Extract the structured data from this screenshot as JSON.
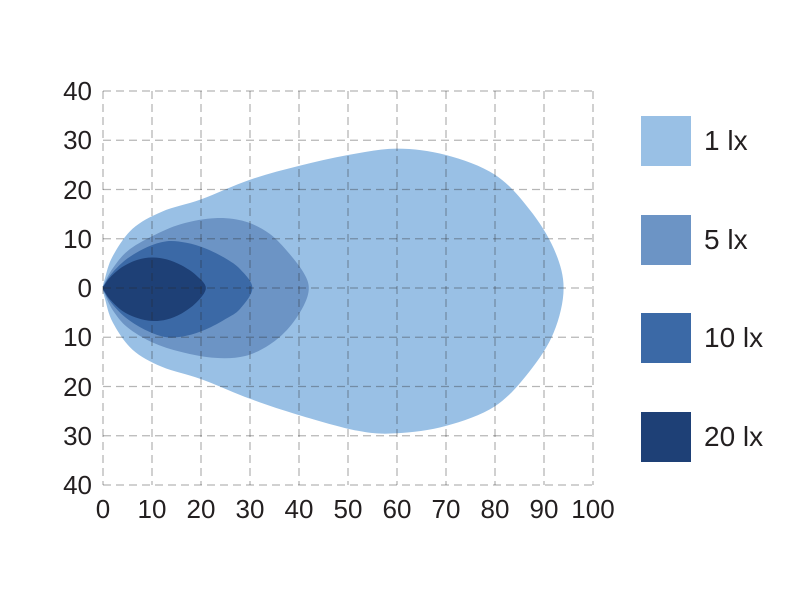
{
  "chart_data": {
    "type": "area",
    "title": "",
    "subtitle": "",
    "xlabel": "",
    "ylabel": "",
    "xlim": [
      0,
      100
    ],
    "ylim": [
      -40,
      40
    ],
    "grid": {
      "on": true,
      "style": "dashed",
      "color": "rgba(40,40,40,0.34)"
    },
    "x_ticks": {
      "values": [
        0,
        10,
        20,
        30,
        40,
        50,
        60,
        70,
        80,
        90,
        100
      ],
      "labels": [
        "0",
        "10",
        "20",
        "30",
        "40",
        "50",
        "60",
        "70",
        "80",
        "90",
        "100"
      ]
    },
    "y_ticks": {
      "values": [
        40,
        30,
        20,
        10,
        0,
        -10,
        -20,
        -30,
        -40
      ],
      "labels": [
        "40",
        "30",
        "20",
        "10",
        "0",
        "10",
        "20",
        "30",
        "40"
      ]
    },
    "series": [
      {
        "name": "1 lx",
        "color": "#99C0E5",
        "points": [
          [
            0,
            0
          ],
          [
            0.4,
            2
          ],
          [
            2,
            6.5
          ],
          [
            6,
            12
          ],
          [
            12,
            15.5
          ],
          [
            20,
            18
          ],
          [
            30,
            22
          ],
          [
            40,
            24.8
          ],
          [
            50,
            27
          ],
          [
            60,
            28.3
          ],
          [
            70,
            27
          ],
          [
            80,
            23
          ],
          [
            87,
            16
          ],
          [
            92,
            8
          ],
          [
            94,
            0
          ],
          [
            92,
            -9
          ],
          [
            87,
            -17
          ],
          [
            80,
            -24
          ],
          [
            70,
            -28
          ],
          [
            60,
            -29.5
          ],
          [
            52,
            -29
          ],
          [
            40,
            -25.8
          ],
          [
            30,
            -22.5
          ],
          [
            20,
            -18.5
          ],
          [
            12,
            -16
          ],
          [
            6,
            -12.5
          ],
          [
            2,
            -7
          ],
          [
            0.4,
            -2.2
          ]
        ]
      },
      {
        "name": "5 lx",
        "color": "#6C94C5",
        "points": [
          [
            0,
            0
          ],
          [
            0.3,
            1
          ],
          [
            2,
            4
          ],
          [
            5,
            7.5
          ],
          [
            10,
            10.5
          ],
          [
            16,
            13
          ],
          [
            23,
            14.2
          ],
          [
            29,
            13.5
          ],
          [
            34,
            11
          ],
          [
            38,
            7
          ],
          [
            41,
            3
          ],
          [
            42,
            0
          ],
          [
            41,
            -3.5
          ],
          [
            38,
            -8
          ],
          [
            34,
            -11.5
          ],
          [
            29,
            -13.8
          ],
          [
            23,
            -14.2
          ],
          [
            16,
            -13
          ],
          [
            10,
            -11
          ],
          [
            5,
            -8
          ],
          [
            2,
            -4.5
          ],
          [
            0.3,
            -1.1
          ]
        ]
      },
      {
        "name": "10 lx",
        "color": "#3B69A6",
        "points": [
          [
            0,
            0
          ],
          [
            0.3,
            0.8
          ],
          [
            2,
            3.2
          ],
          [
            5,
            6
          ],
          [
            9,
            8.3
          ],
          [
            13,
            9.5
          ],
          [
            17,
            9.2
          ],
          [
            21,
            8
          ],
          [
            25,
            6
          ],
          [
            28,
            3.8
          ],
          [
            30.5,
            0
          ],
          [
            28,
            -4.2
          ],
          [
            25,
            -6.3
          ],
          [
            21,
            -8.4
          ],
          [
            17,
            -9.7
          ],
          [
            13,
            -10
          ],
          [
            9,
            -8.7
          ],
          [
            5,
            -6.3
          ],
          [
            2,
            -3.4
          ],
          [
            0.3,
            -0.9
          ]
        ]
      },
      {
        "name": "20 lx",
        "color": "#1E4076",
        "points": [
          [
            0,
            0
          ],
          [
            0.3,
            0.6
          ],
          [
            1.5,
            2.2
          ],
          [
            4,
            4.3
          ],
          [
            7,
            5.7
          ],
          [
            10,
            6.2
          ],
          [
            13,
            5.8
          ],
          [
            16,
            4.6
          ],
          [
            19,
            2.6
          ],
          [
            21,
            0
          ],
          [
            19,
            -3
          ],
          [
            16,
            -5.2
          ],
          [
            13,
            -6.4
          ],
          [
            10,
            -6.7
          ],
          [
            7,
            -6.1
          ],
          [
            4,
            -4.7
          ],
          [
            1.5,
            -2.4
          ],
          [
            0.3,
            -0.7
          ]
        ]
      }
    ],
    "legend": {
      "position": "right",
      "items": [
        {
          "label": "1 lx",
          "color": "#99C0E5"
        },
        {
          "label": "5 lx",
          "color": "#6C94C5"
        },
        {
          "label": "10 lx",
          "color": "#3B69A6"
        },
        {
          "label": "20 lx",
          "color": "#1E4076"
        }
      ]
    }
  }
}
